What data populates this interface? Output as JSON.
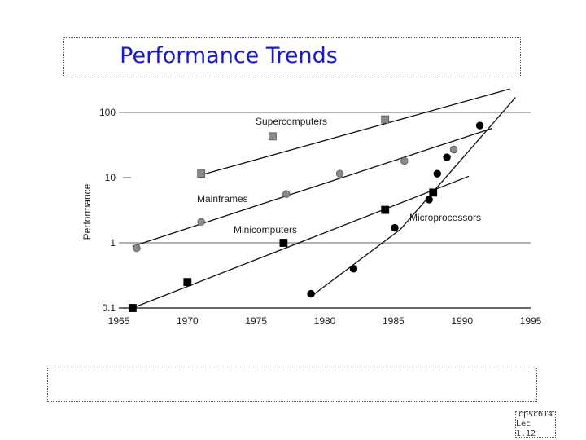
{
  "slide": {
    "title": "Performance Trends",
    "course": "cpsc614",
    "lecture": "Lec 1.12"
  },
  "chart_data": {
    "type": "scatter",
    "title": "",
    "xlabel": "",
    "ylabel": "Performance",
    "yscale": "log",
    "xlim": [
      1965,
      1995
    ],
    "ylim": [
      0.1,
      100
    ],
    "x_ticks": [
      "1965",
      "1970",
      "1975",
      "1980",
      "1985",
      "1990",
      "1995"
    ],
    "y_ticks": [
      "0.1",
      "1",
      "10",
      "100"
    ],
    "grid": "horizontal",
    "series": [
      {
        "name": "Supercomputers",
        "marker": "square",
        "color": "#8a8a8a",
        "points": [
          [
            1971,
            11.5
          ],
          [
            1976.2,
            43
          ],
          [
            1984.4,
            78
          ]
        ],
        "trend": [
          [
            1971,
            11
          ],
          [
            1993.5,
            230
          ]
        ]
      },
      {
        "name": "Mainframes",
        "marker": "circle",
        "color": "#8a8a8a",
        "points": [
          [
            1966.3,
            0.83
          ],
          [
            1971,
            2.1
          ],
          [
            1977.2,
            5.6
          ],
          [
            1981.1,
            11.5
          ],
          [
            1985.8,
            18
          ],
          [
            1989.4,
            27
          ]
        ],
        "trend": [
          [
            1966,
            0.88
          ],
          [
            1992.2,
            57
          ]
        ]
      },
      {
        "name": "Minicomputers",
        "marker": "square",
        "color": "#000000",
        "points": [
          [
            1966,
            0.1
          ],
          [
            1970,
            0.25
          ],
          [
            1977,
            1.0
          ],
          [
            1984.4,
            3.2
          ],
          [
            1987.9,
            5.9
          ]
        ],
        "trend": [
          [
            1966,
            0.1
          ],
          [
            1990.5,
            10.5
          ]
        ]
      },
      {
        "name": "Microprocessors",
        "marker": "circle",
        "color": "#000000",
        "points": [
          [
            1979,
            0.165
          ],
          [
            1982.1,
            0.4
          ],
          [
            1985.1,
            1.7
          ],
          [
            1987.6,
            4.6
          ],
          [
            1988.2,
            11.5
          ],
          [
            1988.9,
            20.5
          ],
          [
            1991.3,
            63
          ]
        ],
        "trend": [
          [
            1979,
            0.15
          ],
          [
            1985.5,
            1.6
          ],
          [
            1993.9,
            170
          ]
        ]
      }
    ]
  }
}
